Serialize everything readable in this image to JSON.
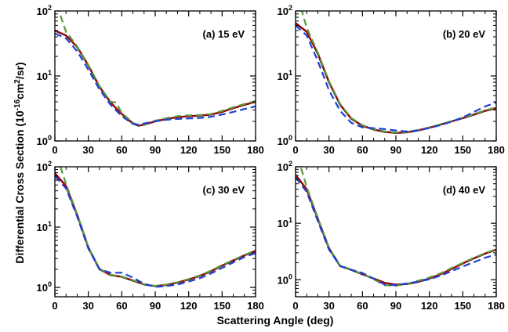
{
  "figure": {
    "xlabel": "Scattering Angle (deg)",
    "ylabel": "Differential Cross Section (10",
    "ylabel_exp": "-16",
    "ylabel_mid": "cm",
    "ylabel_exp2": "2",
    "ylabel_end": "/sr)"
  },
  "chart_data": [
    {
      "type": "line",
      "label": "(a) 15 eV",
      "xlim": [
        0,
        180
      ],
      "ylim": [
        1,
        100
      ],
      "yscale": "log",
      "xticks": [
        "0",
        "30",
        "60",
        "90",
        "120",
        "150",
        "180"
      ],
      "yticks": [
        {
          "base": "10",
          "exp": "0"
        },
        {
          "base": "10",
          "exp": "1"
        },
        {
          "base": "10",
          "exp": "2"
        }
      ],
      "grid": false,
      "series": [
        {
          "color": "#000000",
          "dash": "solid",
          "x": [
            0,
            10,
            20,
            30,
            40,
            50,
            60,
            70,
            75,
            80,
            90,
            100,
            110,
            120,
            130,
            140,
            150,
            160,
            170,
            180
          ],
          "y": [
            50,
            42,
            28,
            14.5,
            6.8,
            3.9,
            2.6,
            1.85,
            1.72,
            1.78,
            2.0,
            2.18,
            2.32,
            2.4,
            2.45,
            2.55,
            2.8,
            3.2,
            3.6,
            4.0
          ]
        },
        {
          "color": "#cc0000",
          "dash": "solid",
          "x": [
            0,
            10,
            20,
            30,
            40,
            50,
            60,
            70,
            75,
            80,
            90,
            100,
            110,
            120,
            130,
            140,
            150,
            160,
            170,
            180
          ],
          "y": [
            50,
            42,
            28,
            14.5,
            6.8,
            3.9,
            2.6,
            1.85,
            1.72,
            1.78,
            2.0,
            2.18,
            2.32,
            2.4,
            2.45,
            2.55,
            2.8,
            3.2,
            3.6,
            4.0
          ]
        },
        {
          "color": "#5a9a3c",
          "dash": "dash",
          "x": [
            5,
            10,
            20,
            30,
            40,
            50,
            55,
            60,
            70,
            75,
            80,
            90,
            100,
            110,
            120,
            130,
            140,
            150,
            160,
            170,
            180
          ],
          "y": [
            85,
            48,
            28.5,
            14.8,
            7.0,
            4.0,
            3.9,
            2.7,
            1.9,
            1.75,
            1.8,
            2.05,
            2.25,
            2.4,
            2.48,
            2.5,
            2.6,
            2.9,
            3.3,
            3.7,
            4.1
          ]
        },
        {
          "color": "#1f3fd8",
          "dash": "dash",
          "x": [
            0,
            10,
            20,
            30,
            40,
            50,
            60,
            70,
            75,
            80,
            90,
            100,
            110,
            120,
            130,
            140,
            150,
            160,
            170,
            180
          ],
          "y": [
            45,
            38,
            24,
            12.5,
            6.2,
            3.6,
            2.4,
            1.82,
            1.78,
            1.86,
            2.0,
            2.12,
            2.18,
            2.22,
            2.26,
            2.35,
            2.55,
            2.8,
            3.1,
            3.4
          ]
        }
      ]
    },
    {
      "type": "line",
      "label": "(b) 20 eV",
      "xlim": [
        0,
        180
      ],
      "ylim": [
        1,
        100
      ],
      "yscale": "log",
      "xticks": [
        "0",
        "30",
        "60",
        "90",
        "120",
        "150",
        "180"
      ],
      "yticks": [
        {
          "base": "10",
          "exp": "0"
        },
        {
          "base": "10",
          "exp": "1"
        },
        {
          "base": "10",
          "exp": "2"
        }
      ],
      "grid": false,
      "series": [
        {
          "color": "#000000",
          "dash": "solid",
          "x": [
            0,
            10,
            20,
            30,
            40,
            50,
            60,
            70,
            80,
            90,
            100,
            110,
            120,
            130,
            140,
            150,
            160,
            170,
            180
          ],
          "y": [
            65,
            48,
            22,
            8.0,
            3.6,
            2.2,
            1.72,
            1.5,
            1.38,
            1.33,
            1.36,
            1.45,
            1.6,
            1.78,
            2.0,
            2.25,
            2.55,
            2.9,
            3.2
          ]
        },
        {
          "color": "#cc0000",
          "dash": "solid",
          "x": [
            0,
            10,
            20,
            30,
            40,
            50,
            60,
            70,
            80,
            90,
            100,
            110,
            120,
            130,
            140,
            150,
            160,
            170,
            180
          ],
          "y": [
            65,
            48,
            22,
            8.0,
            3.6,
            2.2,
            1.72,
            1.5,
            1.38,
            1.33,
            1.36,
            1.45,
            1.6,
            1.78,
            2.0,
            2.25,
            2.55,
            2.9,
            3.2
          ]
        },
        {
          "color": "#5a9a3c",
          "dash": "dash",
          "x": [
            5,
            10,
            20,
            30,
            40,
            50,
            60,
            70,
            80,
            90,
            100,
            110,
            120,
            130,
            140,
            150,
            160,
            170,
            180
          ],
          "y": [
            110,
            55,
            23,
            8.3,
            3.7,
            2.25,
            1.75,
            1.52,
            1.4,
            1.35,
            1.38,
            1.47,
            1.62,
            1.8,
            2.02,
            2.28,
            2.6,
            2.95,
            3.3
          ]
        },
        {
          "color": "#1f3fd8",
          "dash": "dash",
          "x": [
            0,
            10,
            20,
            30,
            40,
            50,
            60,
            70,
            80,
            90,
            100,
            110,
            120,
            130,
            140,
            150,
            160,
            170,
            180
          ],
          "y": [
            60,
            42,
            17,
            6.0,
            2.9,
            1.9,
            1.62,
            1.57,
            1.52,
            1.45,
            1.4,
            1.45,
            1.58,
            1.75,
            1.98,
            2.3,
            2.8,
            3.4,
            3.9
          ]
        }
      ]
    },
    {
      "type": "line",
      "label": "(c) 30 eV",
      "xlim": [
        0,
        180
      ],
      "ylim": [
        0.7,
        100
      ],
      "yscale": "log",
      "xticks": [
        "0",
        "30",
        "60",
        "90",
        "120",
        "150",
        "180"
      ],
      "yticks": [
        {
          "base": "10",
          "exp": "0"
        },
        {
          "base": "10",
          "exp": "1"
        },
        {
          "base": "10",
          "exp": "2"
        }
      ],
      "grid": false,
      "series": [
        {
          "color": "#000000",
          "dash": "solid",
          "x": [
            0,
            10,
            20,
            30,
            40,
            50,
            60,
            70,
            80,
            90,
            100,
            110,
            120,
            130,
            140,
            150,
            160,
            170,
            180
          ],
          "y": [
            78,
            48,
            16,
            4.6,
            2.0,
            1.6,
            1.5,
            1.3,
            1.12,
            1.05,
            1.1,
            1.2,
            1.35,
            1.55,
            1.85,
            2.3,
            2.8,
            3.4,
            4.0
          ]
        },
        {
          "color": "#cc0000",
          "dash": "solid",
          "x": [
            0,
            10,
            20,
            30,
            40,
            50,
            60,
            70,
            80,
            90,
            100,
            110,
            120,
            130,
            140,
            150,
            160,
            170,
            180
          ],
          "y": [
            78,
            48,
            16,
            4.6,
            2.0,
            1.6,
            1.5,
            1.3,
            1.12,
            1.05,
            1.1,
            1.2,
            1.35,
            1.55,
            1.85,
            2.3,
            2.8,
            3.4,
            4.0
          ]
        },
        {
          "color": "#5a9a3c",
          "dash": "dash",
          "x": [
            5,
            10,
            20,
            30,
            40,
            50,
            60,
            70,
            80,
            90,
            100,
            110,
            120,
            130,
            140,
            150,
            160,
            170,
            180
          ],
          "y": [
            100,
            52,
            16.5,
            4.7,
            2.05,
            1.62,
            1.52,
            1.32,
            1.13,
            1.06,
            1.12,
            1.22,
            1.38,
            1.58,
            1.9,
            2.35,
            2.85,
            3.45,
            4.1
          ]
        },
        {
          "color": "#1f3fd8",
          "dash": "dash",
          "x": [
            0,
            10,
            20,
            30,
            40,
            50,
            60,
            70,
            80,
            90,
            100,
            110,
            120,
            130,
            140,
            150,
            160,
            170,
            180
          ],
          "y": [
            70,
            44,
            15,
            4.4,
            2.0,
            1.75,
            1.75,
            1.45,
            1.15,
            1.02,
            1.05,
            1.12,
            1.25,
            1.42,
            1.7,
            2.1,
            2.6,
            3.2,
            3.7
          ]
        }
      ]
    },
    {
      "type": "line",
      "label": "(d) 40 eV",
      "xlim": [
        0,
        180
      ],
      "ylim": [
        0.5,
        100
      ],
      "yscale": "log",
      "xticks": [
        "0",
        "30",
        "60",
        "90",
        "120",
        "150",
        "180"
      ],
      "yticks": [
        {
          "base": "10",
          "exp": "0"
        },
        {
          "base": "10",
          "exp": "1"
        },
        {
          "base": "10",
          "exp": "2"
        }
      ],
      "grid": false,
      "series": [
        {
          "color": "#000000",
          "dash": "solid",
          "x": [
            0,
            10,
            20,
            30,
            40,
            50,
            60,
            70,
            80,
            90,
            100,
            110,
            120,
            130,
            140,
            150,
            160,
            170,
            180
          ],
          "y": [
            72,
            40,
            12,
            3.6,
            1.75,
            1.5,
            1.25,
            1.05,
            0.88,
            0.82,
            0.84,
            0.92,
            1.05,
            1.25,
            1.55,
            1.95,
            2.4,
            2.9,
            3.4
          ]
        },
        {
          "color": "#cc0000",
          "dash": "solid",
          "x": [
            0,
            10,
            20,
            30,
            40,
            50,
            60,
            70,
            80,
            90,
            100,
            110,
            120,
            130,
            140,
            150,
            160,
            170,
            180
          ],
          "y": [
            72,
            40,
            12,
            3.6,
            1.75,
            1.5,
            1.25,
            1.05,
            0.88,
            0.82,
            0.84,
            0.92,
            1.05,
            1.25,
            1.55,
            1.95,
            2.4,
            2.9,
            3.4
          ]
        },
        {
          "color": "#5a9a3c",
          "dash": "dash",
          "x": [
            5,
            10,
            20,
            30,
            40,
            50,
            60,
            70,
            80,
            90,
            100,
            110,
            120,
            130,
            140,
            150,
            160,
            170,
            180
          ],
          "y": [
            95,
            44,
            12.5,
            3.7,
            1.78,
            1.52,
            1.27,
            1.02,
            0.8,
            0.78,
            0.85,
            0.96,
            1.1,
            1.3,
            1.62,
            2.0,
            2.45,
            2.95,
            3.5
          ]
        },
        {
          "color": "#1f3fd8",
          "dash": "dash",
          "x": [
            0,
            10,
            20,
            30,
            40,
            50,
            60,
            70,
            80,
            90,
            100,
            110,
            120,
            130,
            140,
            150,
            160,
            170,
            180
          ],
          "y": [
            65,
            36,
            11,
            3.4,
            1.75,
            1.5,
            1.32,
            1.05,
            0.82,
            0.8,
            0.86,
            0.93,
            1.02,
            1.18,
            1.42,
            1.72,
            2.05,
            2.45,
            2.8
          ]
        }
      ]
    }
  ]
}
